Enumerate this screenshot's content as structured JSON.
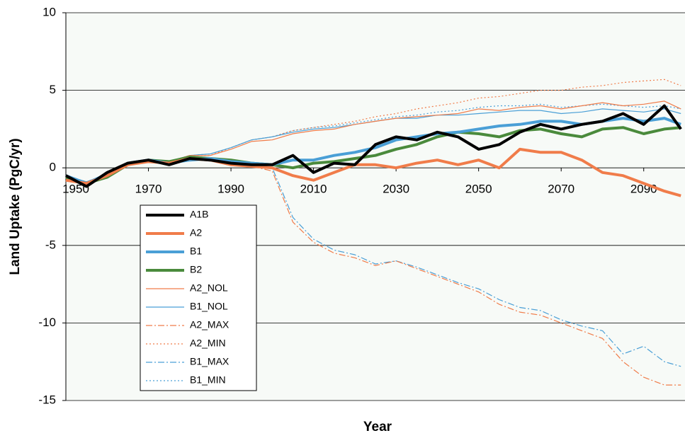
{
  "chart_data": {
    "type": "line",
    "x_label": "Year",
    "y_label": "Land Uptake (PgC/yr)",
    "x": [
      1950,
      1955,
      1960,
      1965,
      1970,
      1975,
      1980,
      1985,
      1990,
      1995,
      2000,
      2005,
      2010,
      2015,
      2020,
      2025,
      2030,
      2035,
      2040,
      2045,
      2050,
      2055,
      2060,
      2065,
      2070,
      2075,
      2080,
      2085,
      2090,
      2095,
      2099
    ],
    "xlim": [
      1950,
      2100
    ],
    "xticks": [
      1950,
      1970,
      1990,
      2010,
      2030,
      2050,
      2070,
      2090
    ],
    "ylim": [
      -15,
      10
    ],
    "yticks": [
      -15,
      -10,
      -5,
      0,
      5,
      10
    ],
    "grid": true,
    "legend": "lower-left",
    "series": [
      {
        "name": "A1B",
        "color": "#000000",
        "line_width": 4,
        "line_style": "solid",
        "values": [
          -0.5,
          -1.2,
          -0.3,
          0.3,
          0.5,
          0.2,
          0.6,
          0.5,
          0.3,
          0.2,
          0.2,
          0.8,
          -0.3,
          0.3,
          0.2,
          1.5,
          2.0,
          1.8,
          2.3,
          2.0,
          1.2,
          1.5,
          2.3,
          2.8,
          2.5,
          2.8,
          3.0,
          3.5,
          2.8,
          4.0,
          2.5
        ]
      },
      {
        "name": "A2",
        "color": "#f07c4a",
        "line_width": 4,
        "line_style": "solid",
        "values": [
          -0.8,
          -1.0,
          -0.5,
          0.2,
          0.4,
          0.3,
          0.6,
          0.5,
          0.2,
          0.1,
          0.0,
          -0.5,
          -0.8,
          -0.3,
          0.2,
          0.2,
          0.0,
          0.3,
          0.5,
          0.2,
          0.5,
          0.0,
          1.2,
          1.0,
          1.0,
          0.5,
          -0.3,
          -0.5,
          -1.0,
          -1.5,
          -1.8
        ]
      },
      {
        "name": "B1",
        "color": "#4a9fd6",
        "line_width": 4,
        "line_style": "solid",
        "values": [
          -0.5,
          -1.0,
          -0.4,
          0.3,
          0.5,
          0.3,
          0.5,
          0.6,
          0.4,
          0.3,
          0.2,
          0.5,
          0.5,
          0.8,
          1.0,
          1.3,
          1.8,
          2.0,
          2.2,
          2.3,
          2.5,
          2.7,
          2.8,
          3.0,
          3.0,
          2.8,
          3.0,
          3.2,
          3.0,
          3.2,
          2.8
        ]
      },
      {
        "name": "B2",
        "color": "#4a8a3c",
        "line_width": 4,
        "line_style": "solid",
        "values": [
          -0.6,
          -1.0,
          -0.6,
          0.2,
          0.5,
          0.4,
          0.7,
          0.6,
          0.5,
          0.3,
          0.2,
          0.0,
          0.3,
          0.4,
          0.6,
          0.8,
          1.2,
          1.5,
          2.0,
          2.3,
          2.2,
          2.0,
          2.4,
          2.5,
          2.2,
          2.0,
          2.5,
          2.6,
          2.2,
          2.5,
          2.6
        ]
      },
      {
        "name": "A2_NOL",
        "color": "#f07c4a",
        "line_width": 1.2,
        "line_style": "solid",
        "values": [
          -0.6,
          -1.0,
          -0.4,
          0.3,
          0.5,
          0.4,
          0.8,
          0.8,
          1.2,
          1.7,
          1.8,
          2.2,
          2.4,
          2.5,
          2.8,
          3.0,
          3.2,
          3.3,
          3.4,
          3.5,
          3.8,
          3.7,
          3.9,
          4.0,
          3.8,
          4.0,
          4.2,
          4.0,
          4.1,
          4.3,
          3.8
        ]
      },
      {
        "name": "B1_NOL",
        "color": "#4a9fd6",
        "line_width": 1.2,
        "line_style": "solid",
        "values": [
          -0.5,
          -0.9,
          -0.4,
          0.3,
          0.5,
          0.4,
          0.8,
          0.9,
          1.3,
          1.8,
          2.0,
          2.3,
          2.5,
          2.6,
          2.8,
          3.0,
          3.2,
          3.2,
          3.4,
          3.4,
          3.5,
          3.6,
          3.7,
          3.7,
          3.5,
          3.6,
          3.8,
          3.7,
          3.6,
          3.8,
          3.5
        ]
      },
      {
        "name": "A2_MAX",
        "color": "#f07c4a",
        "line_width": 1.2,
        "line_style": "dashdot",
        "values": [
          -0.8,
          -1.0,
          -0.5,
          0.2,
          0.4,
          0.3,
          0.6,
          0.5,
          0.2,
          0.1,
          -0.2,
          -3.5,
          -4.8,
          -5.5,
          -5.8,
          -6.3,
          -6.0,
          -6.5,
          -7.0,
          -7.5,
          -8.0,
          -8.8,
          -9.3,
          -9.5,
          -10.0,
          -10.5,
          -11.0,
          -12.5,
          -13.5,
          -14.0,
          -14.0
        ]
      },
      {
        "name": "A2_MIN",
        "color": "#f07c4a",
        "line_width": 1.2,
        "line_style": "dotted",
        "values": [
          -0.6,
          -1.0,
          -0.4,
          0.3,
          0.5,
          0.4,
          0.8,
          0.8,
          1.3,
          1.8,
          2.0,
          2.4,
          2.6,
          2.8,
          3.0,
          3.3,
          3.5,
          3.8,
          4.0,
          4.2,
          4.5,
          4.6,
          4.8,
          5.0,
          5.0,
          5.2,
          5.3,
          5.5,
          5.6,
          5.7,
          5.3
        ]
      },
      {
        "name": "B1_MAX",
        "color": "#4a9fd6",
        "line_width": 1.2,
        "line_style": "dashdot",
        "values": [
          -0.5,
          -1.0,
          -0.4,
          0.3,
          0.5,
          0.3,
          0.5,
          0.6,
          0.4,
          0.3,
          0.0,
          -3.2,
          -4.6,
          -5.3,
          -5.6,
          -6.2,
          -6.0,
          -6.4,
          -6.9,
          -7.4,
          -7.8,
          -8.5,
          -9.0,
          -9.2,
          -9.8,
          -10.2,
          -10.5,
          -12.0,
          -11.5,
          -12.5,
          -12.8
        ]
      },
      {
        "name": "B1_MIN",
        "color": "#4a9fd6",
        "line_width": 1.2,
        "line_style": "dotted",
        "values": [
          -0.5,
          -0.9,
          -0.4,
          0.3,
          0.5,
          0.4,
          0.8,
          0.9,
          1.3,
          1.8,
          2.0,
          2.4,
          2.6,
          2.7,
          2.9,
          3.1,
          3.3,
          3.4,
          3.6,
          3.7,
          3.9,
          4.0,
          4.0,
          4.1,
          3.9,
          4.0,
          4.1,
          4.0,
          3.9,
          4.0,
          3.8
        ]
      }
    ]
  }
}
